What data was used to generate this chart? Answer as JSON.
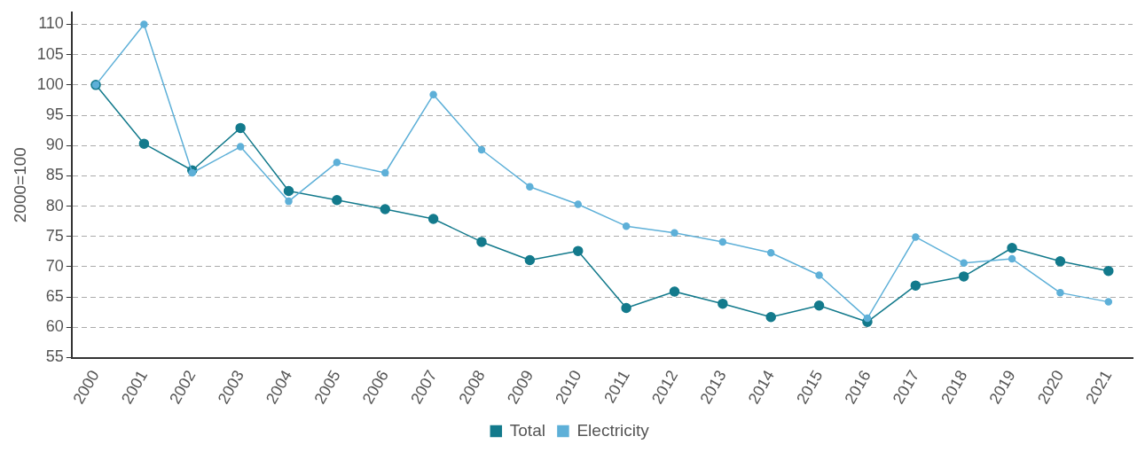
{
  "chart_data": {
    "type": "line",
    "ylabel": "2000=100",
    "categories": [
      "2000",
      "2001",
      "2002",
      "2003",
      "2004",
      "2005",
      "2006",
      "2007",
      "2008",
      "2009",
      "2010",
      "2011",
      "2012",
      "2013",
      "2014",
      "2015",
      "2016",
      "2017",
      "2018",
      "2019",
      "2020",
      "2021"
    ],
    "series": [
      {
        "name": "Total",
        "color": "#137a8c",
        "values": [
          100,
          90.3,
          85.9,
          92.9,
          82.5,
          81,
          79.5,
          77.9,
          74.1,
          71.1,
          72.6,
          63.2,
          65.9,
          63.9,
          61.7,
          63.6,
          60.9,
          66.9,
          68.4,
          73.1,
          70.9,
          69.3
        ]
      },
      {
        "name": "Electricity",
        "color": "#5eb0d8",
        "values": [
          100,
          110,
          85.5,
          89.8,
          80.8,
          87.2,
          85.5,
          98.4,
          89.3,
          83.2,
          80.3,
          76.7,
          75.6,
          74.1,
          72.3,
          68.6,
          61.5,
          74.9,
          70.6,
          71.3,
          65.7,
          64.2
        ]
      }
    ],
    "ylim": [
      55,
      112
    ],
    "yticks": [
      55,
      60,
      65,
      70,
      75,
      80,
      85,
      90,
      95,
      100,
      105,
      110
    ],
    "grid": "y",
    "legend": "bottom",
    "marker": "circle"
  }
}
